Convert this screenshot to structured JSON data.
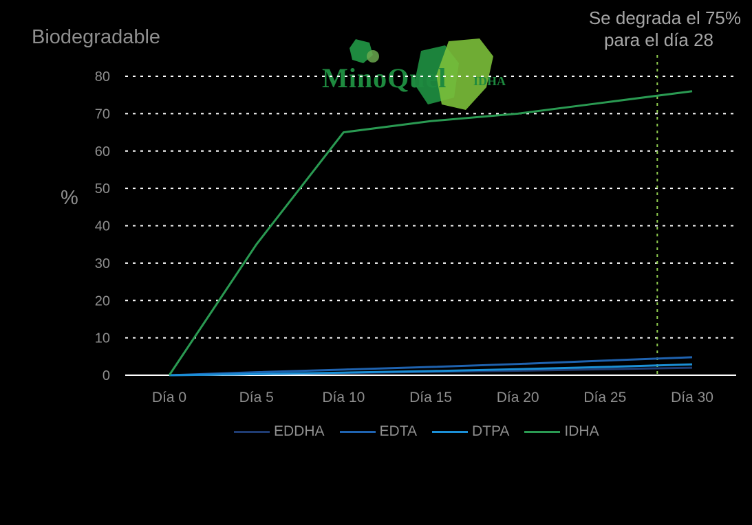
{
  "title": "Biodegradable",
  "annotation": {
    "line1": "Se degrada el 75%",
    "line2": "para el día 28",
    "marker_x": 28
  },
  "logo": {
    "text": "MinoQuel",
    "sub": "IDHA"
  },
  "colors": {
    "background": "#000000",
    "grid": "#ffffff",
    "text": "#8f8f8f",
    "annotation_line": "#92d050",
    "EDDHA": "#1f3c73",
    "EDTA": "#1f63b0",
    "DTPA": "#1b8fd6",
    "IDHA": "#2a9a52"
  },
  "chart_data": {
    "type": "line",
    "title": "Biodegradable",
    "xlabel": "",
    "ylabel": "%",
    "categories": [
      "Día 0",
      "Día 5",
      "Día 10",
      "Día 15",
      "Día 20",
      "Día 25",
      "Día 30"
    ],
    "x": [
      0,
      5,
      10,
      15,
      20,
      25,
      30
    ],
    "ylim": [
      0,
      80
    ],
    "yticks": [
      0,
      10,
      20,
      30,
      40,
      50,
      60,
      70,
      80
    ],
    "grid": true,
    "legend": "bottom",
    "series": [
      {
        "name": "EDDHA",
        "values": [
          0,
          0.3,
          0.6,
          0.9,
          1.2,
          1.6,
          2.0
        ]
      },
      {
        "name": "EDTA",
        "values": [
          0,
          0.8,
          1.5,
          2.2,
          3.0,
          3.9,
          4.8
        ]
      },
      {
        "name": "DTPA",
        "values": [
          0,
          0.3,
          0.7,
          1.1,
          1.6,
          2.2,
          2.9
        ]
      },
      {
        "name": "IDHA",
        "values": [
          0,
          35,
          65,
          68,
          70,
          73,
          76
        ]
      }
    ]
  }
}
